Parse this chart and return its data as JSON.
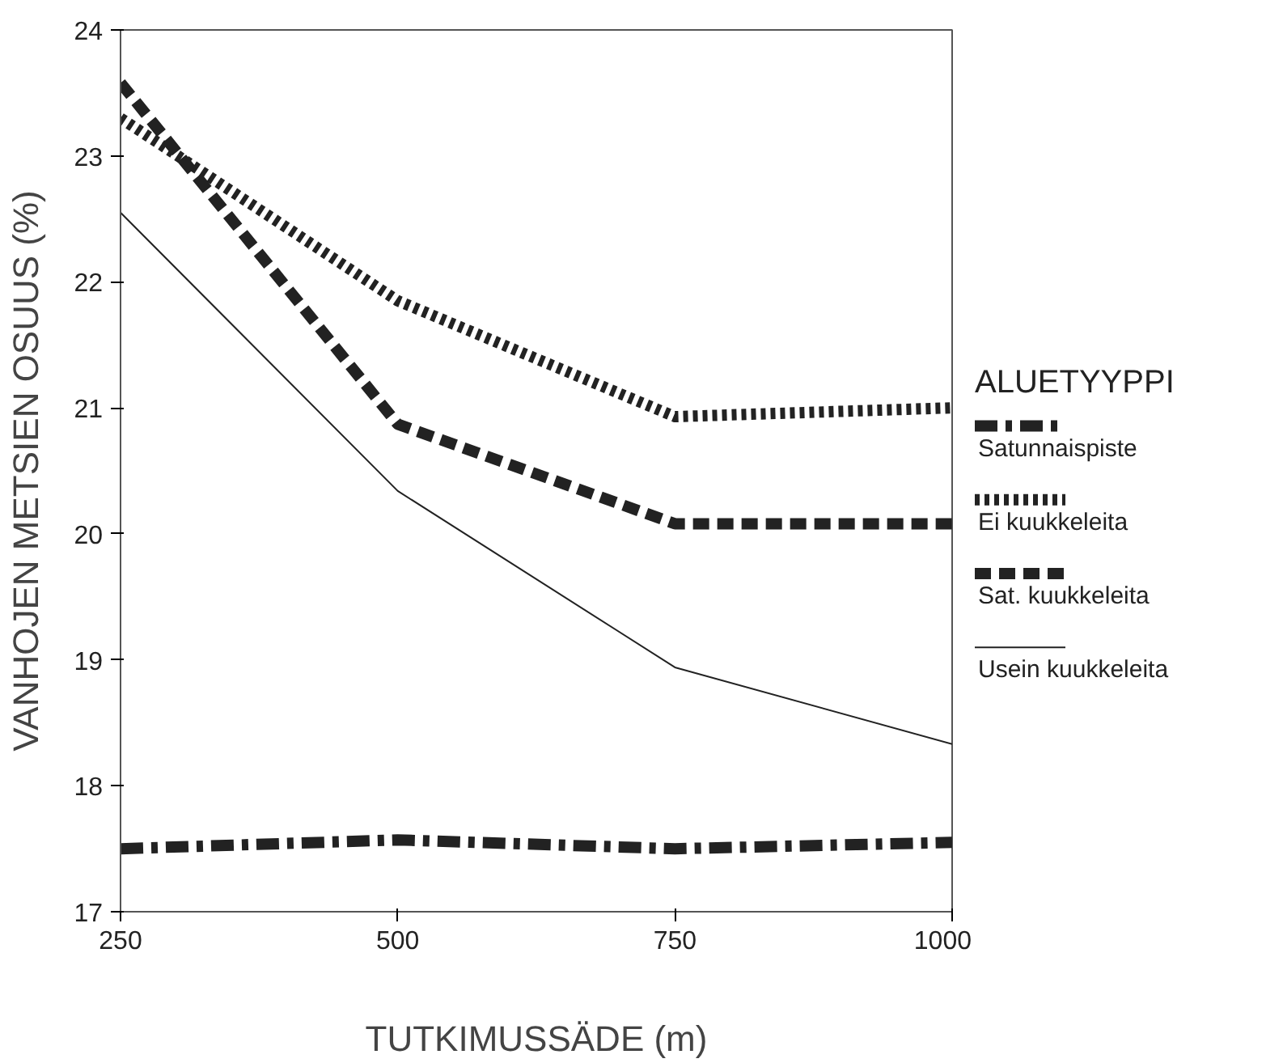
{
  "chart_data": {
    "type": "line",
    "xlabel": "TUTKIMUSSÄDE (m)",
    "ylabel": "VANHOJEN METSIEN OSUUS (%)",
    "legend_title": "ALUETYYPPI",
    "x": [
      250,
      500,
      750,
      1000
    ],
    "xlim": [
      250,
      1000
    ],
    "xticks": [
      250,
      500,
      750,
      1000
    ],
    "ylim": [
      17,
      24
    ],
    "yticks": [
      17,
      18,
      19,
      20,
      21,
      22,
      23,
      24
    ],
    "grid": false,
    "legend": "right",
    "marker": "none",
    "series": [
      {
        "name": "Satunnaispiste",
        "color": "#222222",
        "line_style": "dashdot",
        "values": [
          17.5,
          17.57,
          17.5,
          17.55
        ]
      },
      {
        "name": "Ei kuukkeleita",
        "color": "#222222",
        "line_style": "dotted",
        "values": [
          23.3,
          21.85,
          20.93,
          21.0
        ]
      },
      {
        "name": "Sat. kuukkeleita",
        "color": "#222222",
        "line_style": "dashed",
        "values": [
          23.58,
          20.87,
          20.08,
          20.08
        ]
      },
      {
        "name": "Usein kuukkeleita",
        "color": "#222222",
        "line_style": "solid",
        "values": [
          22.55,
          20.34,
          18.94,
          18.33
        ]
      }
    ]
  }
}
